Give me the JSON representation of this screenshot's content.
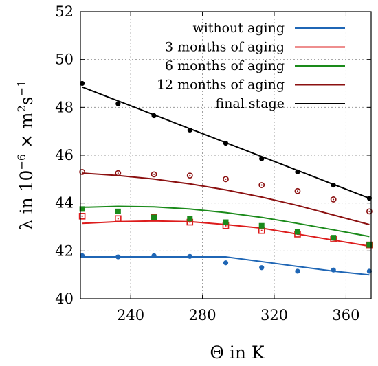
{
  "chart_data": {
    "type": "line",
    "title": "",
    "xlabel_parts": {
      "symbol": "Θ",
      "text": " in K"
    },
    "ylabel_parts": {
      "symbol": "λ",
      "text": " in 10",
      "exp1": "−6",
      "mult": " × m",
      "exp2": "2",
      "s": "s",
      "exp3": "−1"
    },
    "xlim": [
      212,
      374
    ],
    "ylim": [
      40,
      52
    ],
    "xticks": [
      240,
      280,
      320,
      360
    ],
    "yticks": [
      40,
      42,
      44,
      46,
      48,
      50,
      52
    ],
    "grid": true,
    "legend_position": "top-right",
    "series": [
      {
        "name": "without aging",
        "color": "#1f66b5",
        "marker": "circle-filled",
        "points_x": [
          213,
          233,
          253,
          273,
          293,
          313,
          333,
          353,
          373
        ],
        "points_y": [
          41.8,
          41.75,
          41.8,
          41.77,
          41.5,
          41.3,
          41.15,
          41.2,
          41.15
        ],
        "line_x": [
          213,
          233,
          253,
          273,
          293,
          313,
          333,
          353,
          373
        ],
        "line_y": [
          41.75,
          41.75,
          41.75,
          41.75,
          41.75,
          41.55,
          41.35,
          41.15,
          41.0
        ]
      },
      {
        "name": "3 months of aging",
        "color": "#dd1c1c",
        "marker": "square-open",
        "points_x": [
          213,
          233,
          253,
          273,
          293,
          313,
          333,
          353,
          373
        ],
        "points_y": [
          43.45,
          43.35,
          43.4,
          43.2,
          43.05,
          42.85,
          42.7,
          42.5,
          42.25
        ],
        "line_x": [
          213,
          233,
          253,
          273,
          293,
          313,
          333,
          353,
          373
        ],
        "line_y": [
          43.15,
          43.22,
          43.25,
          43.22,
          43.1,
          42.95,
          42.7,
          42.45,
          42.2
        ]
      },
      {
        "name": "6 months of aging",
        "color": "#1a8a1a",
        "marker": "square-filled",
        "points_x": [
          213,
          233,
          253,
          273,
          293,
          313,
          333,
          353,
          373
        ],
        "points_y": [
          43.75,
          43.65,
          43.4,
          43.35,
          43.2,
          43.05,
          42.8,
          42.55,
          42.25
        ],
        "line_x": [
          213,
          233,
          253,
          273,
          293,
          313,
          333,
          353,
          373
        ],
        "line_y": [
          43.82,
          43.86,
          43.84,
          43.75,
          43.6,
          43.4,
          43.15,
          42.88,
          42.6
        ]
      },
      {
        "name": "12 months of aging",
        "color": "#8b1010",
        "marker": "circle-open",
        "points_x": [
          213,
          233,
          253,
          273,
          293,
          313,
          333,
          353,
          373
        ],
        "points_y": [
          45.3,
          45.25,
          45.2,
          45.15,
          45.0,
          44.75,
          44.5,
          44.15,
          43.65
        ],
        "line_x": [
          213,
          233,
          253,
          273,
          293,
          313,
          333,
          353,
          373
        ],
        "line_y": [
          45.25,
          45.15,
          45.0,
          44.8,
          44.55,
          44.25,
          43.9,
          43.5,
          43.1
        ]
      },
      {
        "name": "final stage",
        "color": "#000000",
        "marker": "circle-filled",
        "points_x": [
          213,
          233,
          253,
          273,
          293,
          313,
          333,
          353,
          373
        ],
        "points_y": [
          49.0,
          48.15,
          47.65,
          47.05,
          46.5,
          45.85,
          45.3,
          44.75,
          44.2
        ],
        "line_x": [
          213,
          373
        ],
        "line_y": [
          48.85,
          44.2
        ]
      }
    ]
  }
}
